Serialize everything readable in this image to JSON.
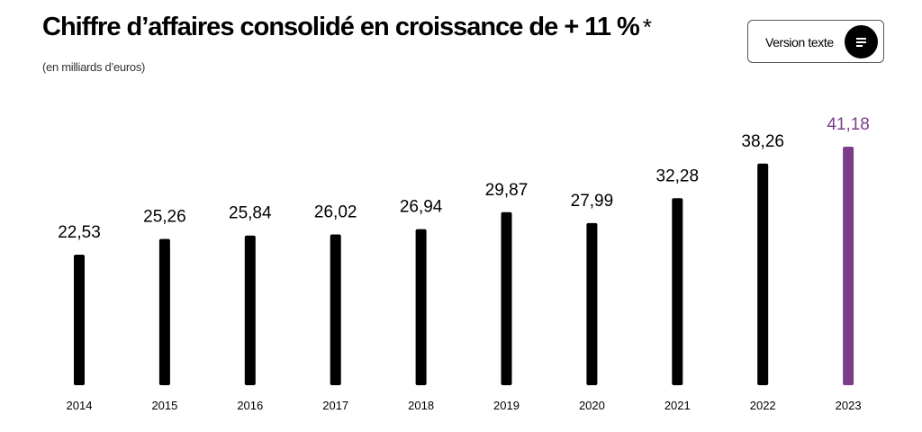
{
  "header": {
    "title": "Chiffre d’affaires consolidé en croissance de + 11 %",
    "title_mark": "*",
    "subtitle": "(en milliards d’euros)",
    "text_version_button": "Version texte",
    "text_version_icon": "text-lines-icon"
  },
  "chart_data": {
    "type": "bar",
    "title": "Chiffre d’affaires consolidé en croissance de + 11 %",
    "subtitle": "(en milliards d’euros)",
    "categories": [
      "2014",
      "2015",
      "2016",
      "2017",
      "2018",
      "2019",
      "2020",
      "2021",
      "2022",
      "2023"
    ],
    "values": [
      22.53,
      25.26,
      25.84,
      26.02,
      26.94,
      29.87,
      27.99,
      32.28,
      38.26,
      41.18
    ],
    "value_labels": [
      "22,53",
      "25,26",
      "25,84",
      "26,02",
      "26,94",
      "29,87",
      "27,99",
      "32,28",
      "38,26",
      "41,18"
    ],
    "highlight_index": 9,
    "ylim": [
      0,
      41.18
    ],
    "grid": false,
    "colors": {
      "bar": "#000000",
      "highlight": "#7b3f8a"
    }
  }
}
